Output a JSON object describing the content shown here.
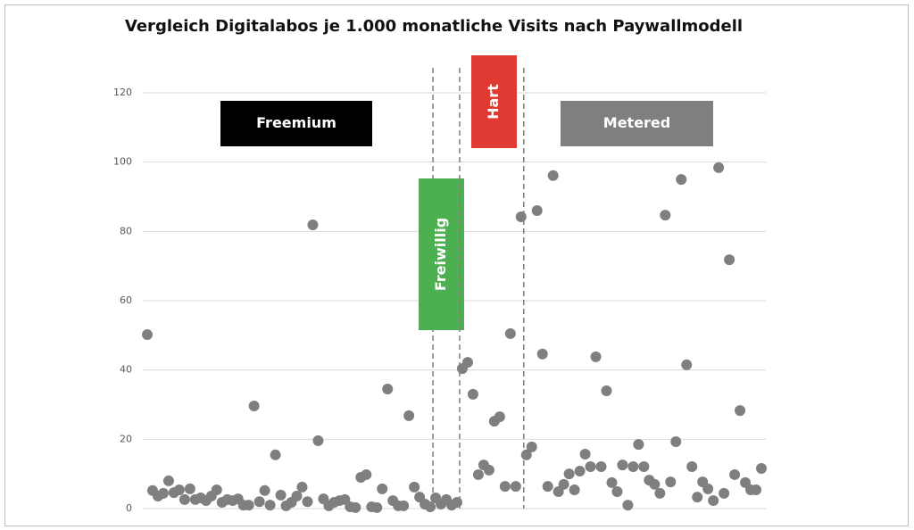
{
  "chart_data": {
    "type": "scatter",
    "title": "Vergleich Digitalabos je 1.000 monatliche Visits nach Paywallmodell",
    "ylim": [
      0,
      120
    ],
    "yticks": [
      0,
      20,
      40,
      60,
      80,
      100,
      120
    ],
    "grid": true,
    "series": [
      {
        "name": "Freemium",
        "color": "#7f7f7f",
        "box_color": "#000000",
        "values": [
          50.2,
          5.2,
          3.6,
          4.4,
          8,
          4.6,
          5.4,
          2.6,
          5.7,
          2.6,
          3.1,
          2.3,
          3.6,
          5.4,
          1.8,
          2.6,
          2.3,
          2.8,
          1,
          1,
          29.6,
          2,
          5.2,
          1,
          15.5,
          3.9,
          0.8,
          1.8,
          3.6,
          6.2,
          2,
          81.9,
          19.6,
          2.8,
          0.8,
          1.8,
          2.3,
          2.6,
          0.5,
          0.3,
          9,
          9.8,
          0.5,
          0.3,
          5.7,
          34.5,
          2.3,
          0.8,
          0.8,
          26.8,
          6.2,
          3.3,
          1.3,
          0.5
        ]
      },
      {
        "name": "Freiwillig",
        "color": "#7f7f7f",
        "box_color": "#4caf50",
        "values": [
          3.1,
          1.3,
          2.6,
          1,
          1.8
        ]
      },
      {
        "name": "Hart",
        "color": "#7f7f7f",
        "box_color": "#e03a32",
        "values": [
          40.4,
          42.2,
          33,
          9.8,
          12.6,
          11.1,
          25.2,
          26.5,
          6.4,
          50.5,
          6.4,
          84.2
        ]
      },
      {
        "name": "Metered",
        "color": "#7f7f7f",
        "box_color": "#7f7f7f",
        "values": [
          15.5,
          17.8,
          86,
          44.6,
          6.4,
          96.1,
          4.9,
          7,
          10,
          5.4,
          10.8,
          15.7,
          12.1,
          43.8,
          12.1,
          34,
          7.5,
          4.9,
          12.6,
          1,
          12.1,
          18.5,
          12.1,
          8.2,
          7,
          4.4,
          84.7,
          7.7,
          19.3,
          95,
          41.5,
          12.1,
          3.3,
          7.7,
          5.7,
          2.3,
          98.4,
          4.4,
          71.8,
          9.8,
          28.3,
          7.5,
          5.4,
          5.4,
          11.6
        ]
      }
    ]
  }
}
